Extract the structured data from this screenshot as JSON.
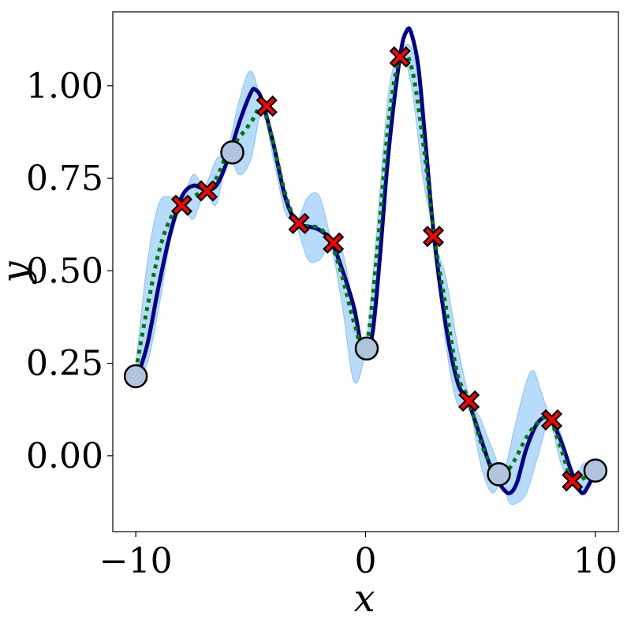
{
  "chart_data": {
    "type": "line",
    "xlabel": "x",
    "ylabel": "y",
    "xlim": [
      -11,
      11
    ],
    "ylim": [
      -0.205,
      1.2
    ],
    "xticks": [
      -10,
      0,
      10
    ],
    "xtick_labels": [
      "−10",
      "0",
      "10"
    ],
    "yticks": [
      0.0,
      0.25,
      0.5,
      0.75,
      1.0
    ],
    "ytick_labels": [
      "0.00",
      "0.25",
      "0.50",
      "0.75",
      "1.00"
    ],
    "grid": false,
    "legend": "none",
    "series": [
      {
        "role": "true-function",
        "style": "solid",
        "color": "#00008b",
        "points": [
          [
            -10,
            0.2
          ],
          [
            -9.5,
            0.3
          ],
          [
            -9,
            0.46
          ],
          [
            -8.5,
            0.6
          ],
          [
            -8,
            0.7
          ],
          [
            -7.5,
            0.73
          ],
          [
            -7,
            0.72
          ],
          [
            -6.5,
            0.73
          ],
          [
            -6,
            0.8
          ],
          [
            -5.5,
            0.9
          ],
          [
            -5,
            0.98
          ],
          [
            -4.8,
            0.99
          ],
          [
            -4.5,
            0.96
          ],
          [
            -4,
            0.84
          ],
          [
            -3.5,
            0.7
          ],
          [
            -3,
            0.63
          ],
          [
            -2.5,
            0.62
          ],
          [
            -2,
            0.61
          ],
          [
            -1.5,
            0.58
          ],
          [
            -1,
            0.5
          ],
          [
            -0.5,
            0.4
          ],
          [
            -0.2,
            0.3
          ],
          [
            0,
            0.28
          ],
          [
            0.3,
            0.33
          ],
          [
            0.6,
            0.52
          ],
          [
            1,
            0.82
          ],
          [
            1.5,
            1.08
          ],
          [
            1.8,
            1.15
          ],
          [
            2,
            1.14
          ],
          [
            2.3,
            1.05
          ],
          [
            2.6,
            0.85
          ],
          [
            3,
            0.58
          ],
          [
            3.5,
            0.35
          ],
          [
            4,
            0.2
          ],
          [
            4.5,
            0.14
          ],
          [
            5,
            0.05
          ],
          [
            5.5,
            -0.04
          ],
          [
            6,
            -0.09
          ],
          [
            6.3,
            -0.1
          ],
          [
            6.6,
            -0.07
          ],
          [
            7,
            0.02
          ],
          [
            7.5,
            0.09
          ],
          [
            8,
            0.1
          ],
          [
            8.5,
            0.04
          ],
          [
            9,
            -0.05
          ],
          [
            9.4,
            -0.1
          ],
          [
            9.7,
            -0.08
          ],
          [
            10,
            -0.04
          ]
        ]
      },
      {
        "role": "prediction-mean",
        "style": "dotted",
        "color": "#007a00",
        "points": [
          [
            -10,
            0.23
          ],
          [
            -9.5,
            0.4
          ],
          [
            -9,
            0.55
          ],
          [
            -8.5,
            0.64
          ],
          [
            -8,
            0.68
          ],
          [
            -7.5,
            0.7
          ],
          [
            -7,
            0.72
          ],
          [
            -6.5,
            0.75
          ],
          [
            -6,
            0.82
          ],
          [
            -5.5,
            0.86
          ],
          [
            -5,
            0.9
          ],
          [
            -4.5,
            0.94
          ],
          [
            -4,
            0.84
          ],
          [
            -3.5,
            0.71
          ],
          [
            -3,
            0.63
          ],
          [
            -2.5,
            0.62
          ],
          [
            -2,
            0.615
          ],
          [
            -1.5,
            0.575
          ],
          [
            -1,
            0.48
          ],
          [
            -0.5,
            0.36
          ],
          [
            0,
            0.29
          ],
          [
            0.5,
            0.55
          ],
          [
            1,
            0.9
          ],
          [
            1.5,
            1.08
          ],
          [
            2,
            1.05
          ],
          [
            2.5,
            0.85
          ],
          [
            3,
            0.59
          ],
          [
            3.5,
            0.4
          ],
          [
            4,
            0.22
          ],
          [
            4.5,
            0.15
          ],
          [
            5,
            0.04
          ],
          [
            5.5,
            -0.03
          ],
          [
            6,
            -0.05
          ],
          [
            6.5,
            -0.01
          ],
          [
            7,
            0.05
          ],
          [
            7.5,
            0.09
          ],
          [
            8,
            0.1
          ],
          [
            8.5,
            0.02
          ],
          [
            9,
            -0.07
          ],
          [
            9.5,
            -0.06
          ],
          [
            10,
            -0.04
          ]
        ]
      },
      {
        "role": "uncertainty-band",
        "style": "fill",
        "color": "#90c8f8",
        "points_upper": [
          [
            -10,
            0.24
          ],
          [
            -9.5,
            0.52
          ],
          [
            -9,
            0.68
          ],
          [
            -8.5,
            0.7
          ],
          [
            -8,
            0.69
          ],
          [
            -7.5,
            0.76
          ],
          [
            -7,
            0.73
          ],
          [
            -6.5,
            0.8
          ],
          [
            -6,
            0.83
          ],
          [
            -5.5,
            0.96
          ],
          [
            -5,
            1.04
          ],
          [
            -4.5,
            0.95
          ],
          [
            -4,
            0.86
          ],
          [
            -3.5,
            0.72
          ],
          [
            -3,
            0.64
          ],
          [
            -2.5,
            0.7
          ],
          [
            -2,
            0.7
          ],
          [
            -1.5,
            0.59
          ],
          [
            -1,
            0.55
          ],
          [
            -0.5,
            0.4
          ],
          [
            0,
            0.3
          ],
          [
            0.5,
            0.62
          ],
          [
            1,
            0.98
          ],
          [
            1.5,
            1.09
          ],
          [
            2,
            1.1
          ],
          [
            2.5,
            0.95
          ],
          [
            3,
            0.6
          ],
          [
            3.5,
            0.48
          ],
          [
            4,
            0.3
          ],
          [
            4.5,
            0.16
          ],
          [
            5,
            0.1
          ],
          [
            5.5,
            0.02
          ],
          [
            6,
            -0.04
          ],
          [
            6.5,
            0.08
          ],
          [
            7,
            0.2
          ],
          [
            7.3,
            0.23
          ],
          [
            7.6,
            0.18
          ],
          [
            8,
            0.11
          ],
          [
            8.5,
            0.06
          ],
          [
            9,
            -0.06
          ],
          [
            9.5,
            -0.02
          ],
          [
            10,
            -0.03
          ]
        ],
        "points_lower": [
          [
            -10,
            0.22
          ],
          [
            -9.5,
            0.25
          ],
          [
            -9,
            0.4
          ],
          [
            -8.5,
            0.58
          ],
          [
            -8,
            0.67
          ],
          [
            -7.5,
            0.64
          ],
          [
            -7,
            0.71
          ],
          [
            -6.5,
            0.68
          ],
          [
            -6,
            0.81
          ],
          [
            -5.5,
            0.76
          ],
          [
            -5,
            0.8
          ],
          [
            -4.5,
            0.93
          ],
          [
            -4,
            0.8
          ],
          [
            -3.5,
            0.66
          ],
          [
            -3,
            0.62
          ],
          [
            -2.5,
            0.53
          ],
          [
            -2,
            0.53
          ],
          [
            -1.5,
            0.56
          ],
          [
            -1,
            0.4
          ],
          [
            -0.5,
            0.2
          ],
          [
            0,
            0.28
          ],
          [
            0.5,
            0.47
          ],
          [
            1,
            0.8
          ],
          [
            1.5,
            1.07
          ],
          [
            2,
            1.0
          ],
          [
            2.5,
            0.75
          ],
          [
            3,
            0.58
          ],
          [
            3.5,
            0.3
          ],
          [
            4,
            0.14
          ],
          [
            4.5,
            0.14
          ],
          [
            5,
            -0.02
          ],
          [
            5.5,
            -0.1
          ],
          [
            6,
            -0.06
          ],
          [
            6.2,
            -0.12
          ],
          [
            6.5,
            -0.13
          ],
          [
            7,
            -0.1
          ],
          [
            7.5,
            0.0
          ],
          [
            8,
            0.09
          ],
          [
            8.5,
            -0.02
          ],
          [
            9,
            -0.08
          ],
          [
            9.5,
            -0.1
          ],
          [
            10,
            -0.05
          ]
        ]
      }
    ],
    "markers": {
      "circles": {
        "fill": "#b0c4de",
        "points": [
          [
            -10,
            0.215
          ],
          [
            -5.8,
            0.82
          ],
          [
            0.05,
            0.29
          ],
          [
            5.8,
            -0.05
          ],
          [
            10,
            -0.04
          ]
        ]
      },
      "crosses": {
        "fill": "#ff0000",
        "points": [
          [
            -8,
            0.677
          ],
          [
            -6.9,
            0.716
          ],
          [
            -4.3,
            0.945
          ],
          [
            -2.9,
            0.628
          ],
          [
            -1.4,
            0.575
          ],
          [
            1.5,
            1.078
          ],
          [
            2.95,
            0.593
          ],
          [
            4.5,
            0.148
          ],
          [
            8.1,
            0.097
          ],
          [
            9,
            -0.068
          ]
        ]
      }
    }
  }
}
